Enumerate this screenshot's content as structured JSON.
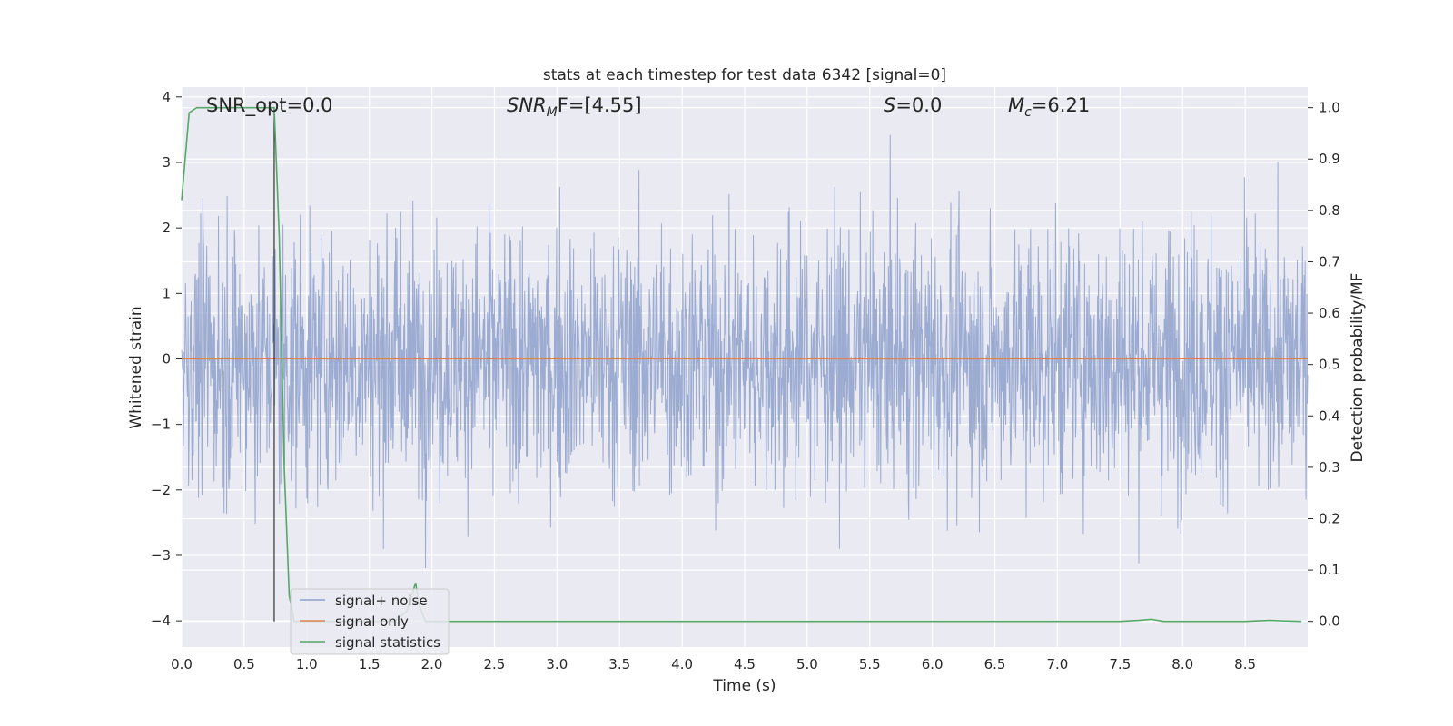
{
  "chart_data": {
    "type": "line",
    "title": "stats at each timestep for test data 6342 [signal=0]",
    "xlabel": "Time (s)",
    "ylabel_left": "Whitened strain",
    "ylabel_right": "Detection probability/MF",
    "xlim": [
      0.0,
      9.0
    ],
    "ylim_left": [
      -4.4,
      4.15
    ],
    "ylim_right": [
      -0.05,
      1.04
    ],
    "x_ticks": [
      "0.0",
      "0.5",
      "1.0",
      "1.5",
      "2.0",
      "2.5",
      "3.0",
      "3.5",
      "4.0",
      "4.5",
      "5.0",
      "5.5",
      "6.0",
      "6.5",
      "7.0",
      "7.5",
      "8.0",
      "8.5"
    ],
    "x_tick_values": [
      0.0,
      0.5,
      1.0,
      1.5,
      2.0,
      2.5,
      3.0,
      3.5,
      4.0,
      4.5,
      5.0,
      5.5,
      6.0,
      6.5,
      7.0,
      7.5,
      8.0,
      8.5
    ],
    "y_left_ticks": [
      "−4",
      "−3",
      "−2",
      "−1",
      "0",
      "1",
      "2",
      "3",
      "4"
    ],
    "y_left_tick_values": [
      -4,
      -3,
      -2,
      -1,
      0,
      1,
      2,
      3,
      4
    ],
    "y_right_ticks": [
      "0.0",
      "0.1",
      "0.2",
      "0.3",
      "0.4",
      "0.5",
      "0.6",
      "0.7",
      "0.8",
      "0.9",
      "1.0"
    ],
    "y_right_tick_values": [
      0.0,
      0.1,
      0.2,
      0.3,
      0.4,
      0.5,
      0.6,
      0.7,
      0.8,
      0.9,
      1.0
    ],
    "grid": true,
    "annotations": {
      "snr_opt": "SNR_opt=0.0",
      "snr_mf_base": "SNR",
      "snr_mf_sub": "M",
      "snr_mf_rest": "F=[4.55]",
      "s_label": "S",
      "s_value": "=0.0",
      "mc_label": "M",
      "mc_sub": "c",
      "mc_value": "=6.21"
    },
    "vertical_marker_x": 0.74,
    "legend": {
      "placement": "lower-left",
      "entries": [
        "signal+ noise",
        "signal only",
        "signal statistics"
      ]
    },
    "series": [
      {
        "name": "signal+ noise",
        "axis": "left",
        "color": "#8da0cb",
        "noise_amplitude": 1.0,
        "peak_max": 3.78,
        "trough_min": -4.02
      },
      {
        "name": "signal only",
        "axis": "left",
        "color": "#dd8452",
        "x": [
          0.0,
          9.0
        ],
        "y": [
          0.0,
          0.0
        ]
      },
      {
        "name": "signal statistics",
        "axis": "right",
        "color": "#55a868",
        "x": [
          0.0,
          0.06,
          0.12,
          0.2,
          0.3,
          0.4,
          0.5,
          0.6,
          0.7,
          0.74,
          0.78,
          0.82,
          0.86,
          0.9,
          1.0,
          1.2,
          1.4,
          1.6,
          1.7,
          1.8,
          1.87,
          1.9,
          1.95,
          2.0,
          2.5,
          3.0,
          4.0,
          5.0,
          6.0,
          7.0,
          7.5,
          7.65,
          7.75,
          7.85,
          8.0,
          8.5,
          8.7,
          8.8,
          8.95
        ],
        "y": [
          0.82,
          0.99,
          1.0,
          1.0,
          1.0,
          1.0,
          1.0,
          1.0,
          1.0,
          1.0,
          0.75,
          0.3,
          0.05,
          0.0,
          0.0,
          0.0,
          0.0,
          0.0,
          0.0,
          0.02,
          0.075,
          0.03,
          0.0,
          0.0,
          0.0,
          0.0,
          0.0,
          0.0,
          0.0,
          0.0,
          0.0,
          0.002,
          0.004,
          0.0,
          0.0,
          0.0,
          0.002,
          0.001,
          0.0
        ]
      }
    ]
  }
}
